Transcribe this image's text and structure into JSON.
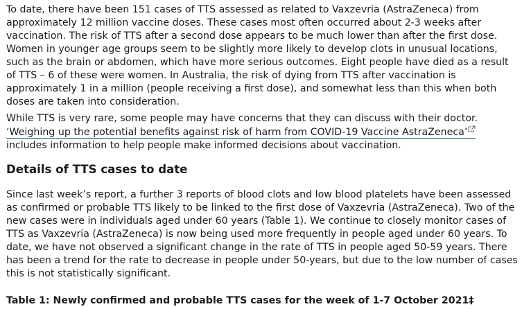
{
  "paragraphs": {
    "intro": "To date, there have been 151 cases of TTS assessed as related to Vaxzevria (AstraZeneca) from approximately 12 million vaccine doses. These cases most often occurred about 2-3 weeks after vaccination. The risk of TTS after a second dose appears to be much lower than after the first dose. Women in younger age groups seem to be slightly more likely to develop clots in unusual locations, such as the brain or abdomen, which have more serious outcomes. Eight people have died as a result of TTS – 6 of these were women. In Australia, the risk of dying from TTS after vaccination is approximately 1 in a million (people receiving a first dose), and somewhat less than this when both doses are taken into consideration.",
    "rare_before": "While TTS is very rare, some people may have concerns that they can discuss with their doctor. ",
    "rare_link": "‘Weighing up the potential benefits against risk of harm from COVID-19 Vaccine AstraZeneca’",
    "rare_after": " includes information to help people make informed decisions about vaccination.",
    "details": "Since last week’s report, a further 3 reports of blood clots and low blood platelets have been assessed as confirmed or probable TTS likely to be linked to the first dose of Vaxzevria (AstraZeneca). Two of the new cases were in individuals aged under 60 years (Table 1). We continue to closely monitor cases of TTS as Vaxzevria (AstraZeneca) is now being used more frequently in people aged under 60 years. To date, we have not observed a significant change in the rate of TTS in people aged 50-59 years. There has been a trend for the rate to decrease in people under 50-years, but due to the low number of cases this is not statistically significant."
  },
  "headings": {
    "details": "Details of TTS cases to date",
    "table1": "Table 1: Newly confirmed and probable TTS cases for the week of 1-7 October 2021‡"
  },
  "icons": {
    "external_link": "external-link-icon"
  },
  "colors": {
    "text": "#1b1b1b",
    "link_underline": "#1b5e8c",
    "icon": "#5a6b7b"
  }
}
